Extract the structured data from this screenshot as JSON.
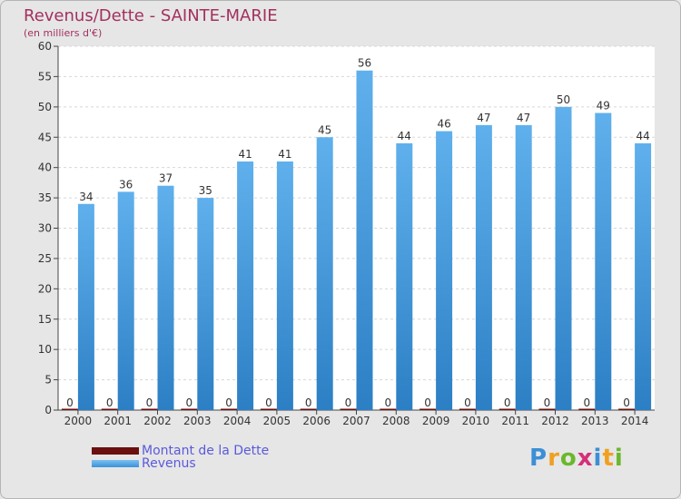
{
  "title": "Revenus/Dette - SAINTE-MARIE",
  "subtitle": "(en milliers d'€)",
  "chart_data": {
    "type": "bar",
    "categories": [
      "2000",
      "2001",
      "2002",
      "2003",
      "2004",
      "2005",
      "2006",
      "2007",
      "2008",
      "2009",
      "2010",
      "2011",
      "2012",
      "2013",
      "2014"
    ],
    "series": [
      {
        "name": "Montant de la Dette",
        "color": "#6b0f0f",
        "values": [
          0,
          0,
          0,
          0,
          0,
          0,
          0,
          0,
          0,
          0,
          0,
          0,
          0,
          0,
          0
        ]
      },
      {
        "name": "Revenus",
        "color": "#4aa3e6",
        "values": [
          34,
          36,
          37,
          35,
          41,
          41,
          45,
          56,
          44,
          46,
          47,
          47,
          50,
          49,
          44
        ]
      }
    ],
    "ylim": [
      0,
      60
    ],
    "yticks": [
      0,
      5,
      10,
      15,
      20,
      25,
      30,
      35,
      40,
      45,
      50,
      55,
      60
    ],
    "grid": true,
    "legend_position": "bottom-left"
  },
  "legend": [
    {
      "label": "Montant de la Dette",
      "color": "#6b0f0f"
    },
    {
      "label": "Revenus",
      "color": "#4aa3e6"
    }
  ],
  "logo": {
    "letters": [
      "P",
      "r",
      "o",
      "x",
      "i",
      "t",
      "i"
    ],
    "colors": [
      "#3b8fd6",
      "#f0a020",
      "#6ab82c",
      "#d4307a",
      "#3b8fd6",
      "#f0a020",
      "#6ab82c"
    ]
  }
}
